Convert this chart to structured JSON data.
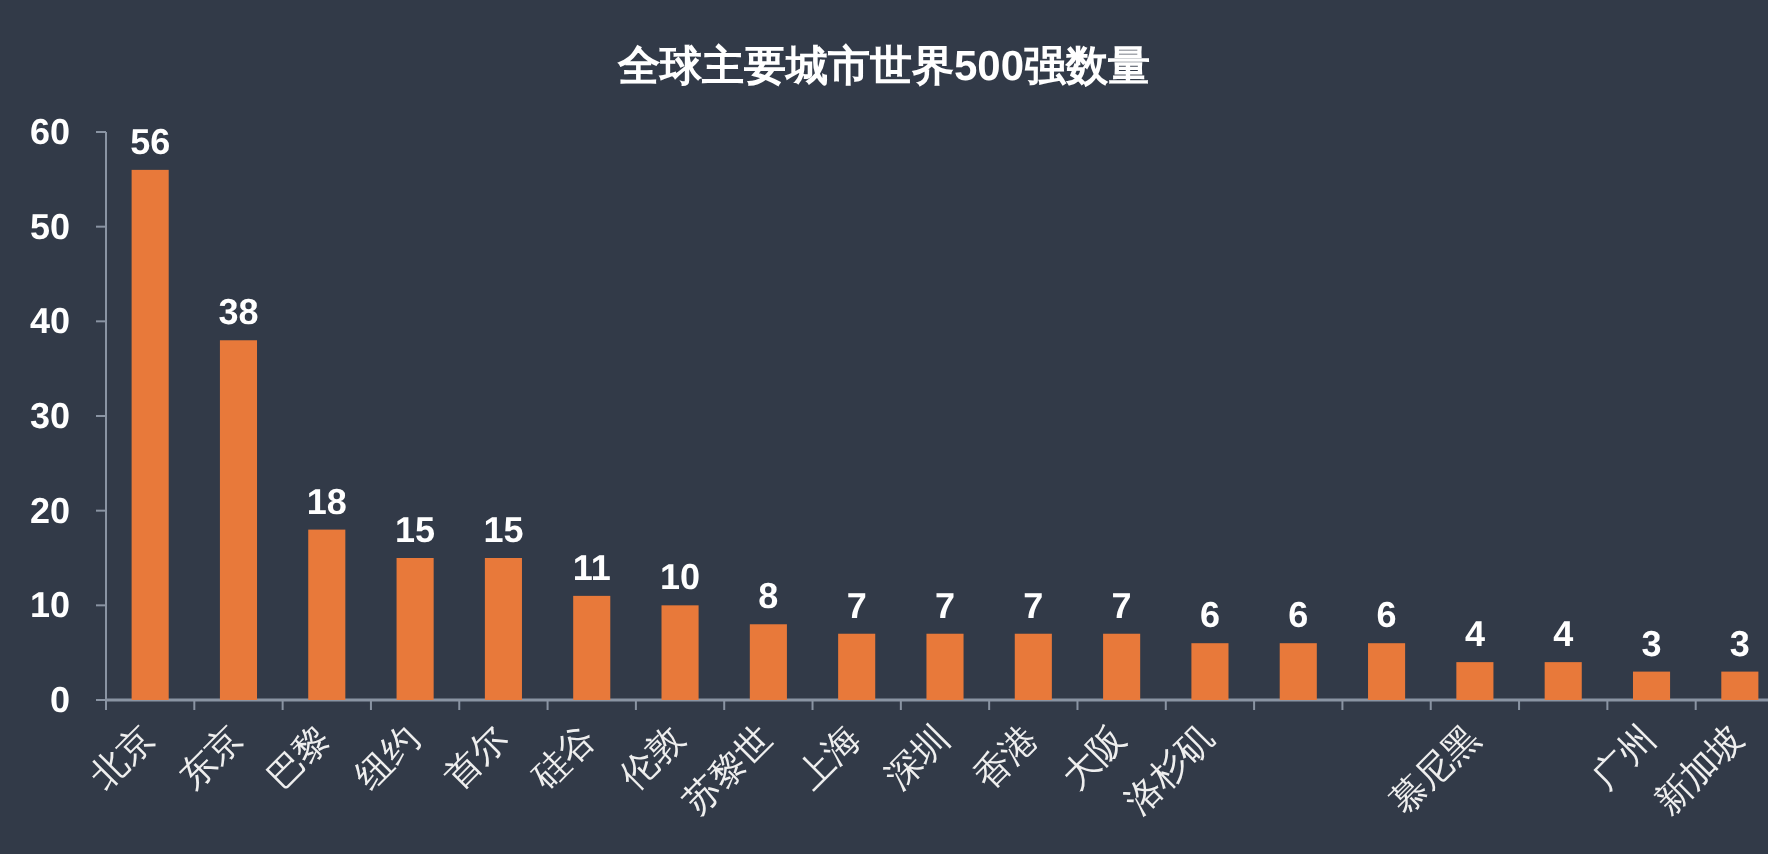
{
  "chart_data": {
    "type": "bar",
    "title": "全球主要城市世界500强数量",
    "categories": [
      "北京",
      "东京",
      "巴黎",
      "纽约",
      "首尔",
      "硅谷",
      "伦敦",
      "苏黎世",
      "上海",
      "深圳",
      "香港",
      "大阪",
      "洛杉矶",
      null,
      null,
      "慕尼黑",
      null,
      "广州",
      "新加坡"
    ],
    "values": [
      56,
      38,
      18,
      15,
      15,
      11,
      10,
      8,
      7,
      7,
      7,
      7,
      6,
      6,
      6,
      4,
      4,
      3,
      3
    ],
    "color": "#e8793a",
    "ylim": [
      0,
      60
    ],
    "yticks": [
      0,
      10,
      20,
      30,
      40,
      50,
      60
    ],
    "data_labels": true
  }
}
